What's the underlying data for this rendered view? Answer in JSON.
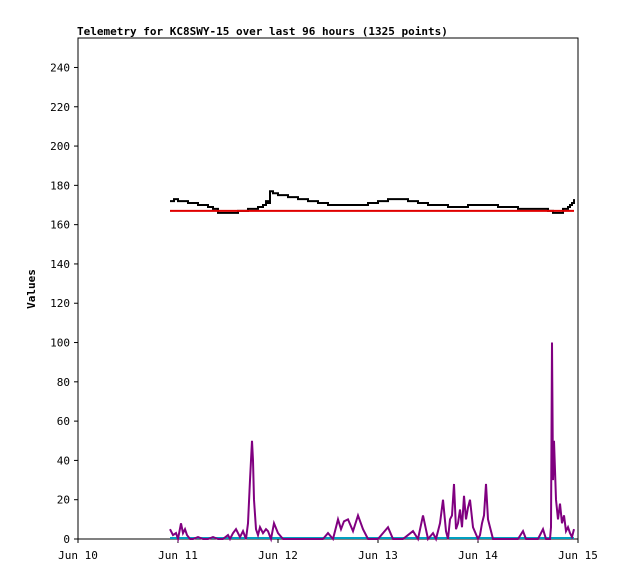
{
  "chart_data": {
    "type": "line",
    "title": "Telemetry for KC8SWY-15 over last 96 hours (1325 points)",
    "xlabel": "",
    "ylabel": "Values",
    "ylim": [
      0,
      255
    ],
    "yticks": [
      0,
      20,
      40,
      60,
      80,
      100,
      120,
      140,
      160,
      180,
      200,
      220,
      240
    ],
    "xticks": [
      {
        "label": "Jun 10",
        "x": 0
      },
      {
        "label": "Jun 11",
        "x": 1
      },
      {
        "label": "Jun 12",
        "x": 2
      },
      {
        "label": "Jun 13",
        "x": 3
      },
      {
        "label": "Jun 14",
        "x": 4
      },
      {
        "label": "Jun 15",
        "x": 5
      }
    ],
    "xlim": [
      0,
      5
    ],
    "grid": false,
    "series": [
      {
        "color": "#000000",
        "style": "step",
        "x": [
          0.92,
          0.96,
          1.0,
          1.1,
          1.2,
          1.3,
          1.35,
          1.4,
          1.55,
          1.6,
          1.7,
          1.8,
          1.85,
          1.88,
          1.9,
          1.92,
          1.95,
          2.0,
          2.1,
          2.2,
          2.3,
          2.4,
          2.5,
          2.6,
          2.7,
          2.8,
          2.9,
          3.0,
          3.1,
          3.2,
          3.3,
          3.4,
          3.5,
          3.6,
          3.7,
          3.8,
          3.9,
          4.0,
          4.1,
          4.2,
          4.3,
          4.4,
          4.5,
          4.6,
          4.65,
          4.7,
          4.75,
          4.8,
          4.85,
          4.9,
          4.92,
          4.94,
          4.96
        ],
        "y": [
          172,
          173,
          172,
          171,
          170,
          169,
          168,
          166,
          166,
          167,
          168,
          169,
          170,
          172,
          171,
          177,
          176,
          175,
          174,
          173,
          172,
          171,
          170,
          170,
          170,
          170,
          171,
          172,
          173,
          173,
          172,
          171,
          170,
          170,
          169,
          169,
          170,
          170,
          170,
          169,
          169,
          168,
          168,
          168,
          168,
          167,
          166,
          166,
          168,
          169,
          170,
          171,
          173
        ]
      },
      {
        "color": "#e00000",
        "style": "line",
        "x": [
          0.92,
          4.96
        ],
        "y": [
          167,
          167
        ]
      },
      {
        "color": "#00a0c0",
        "style": "line",
        "x": [
          0.92,
          4.96
        ],
        "y": [
          0.5,
          0.5
        ]
      },
      {
        "color": "#800080",
        "style": "line",
        "x": [
          0.92,
          0.95,
          0.98,
          1.0,
          1.03,
          1.05,
          1.07,
          1.09,
          1.12,
          1.15,
          1.2,
          1.25,
          1.3,
          1.35,
          1.4,
          1.45,
          1.5,
          1.52,
          1.55,
          1.58,
          1.62,
          1.65,
          1.68,
          1.7,
          1.72,
          1.74,
          1.75,
          1.76,
          1.78,
          1.8,
          1.82,
          1.85,
          1.88,
          1.9,
          1.93,
          1.96,
          2.0,
          2.05,
          2.1,
          2.15,
          2.2,
          2.3,
          2.4,
          2.45,
          2.5,
          2.55,
          2.58,
          2.6,
          2.63,
          2.66,
          2.7,
          2.75,
          2.8,
          2.85,
          2.9,
          2.95,
          3.0,
          3.05,
          3.1,
          3.15,
          3.2,
          3.25,
          3.3,
          3.35,
          3.4,
          3.45,
          3.5,
          3.55,
          3.58,
          3.62,
          3.65,
          3.68,
          3.7,
          3.72,
          3.74,
          3.76,
          3.78,
          3.8,
          3.82,
          3.84,
          3.86,
          3.88,
          3.9,
          3.92,
          3.95,
          4.0,
          4.02,
          4.04,
          4.06,
          4.08,
          4.1,
          4.15,
          4.2,
          4.3,
          4.4,
          4.45,
          4.48,
          4.5,
          4.55,
          4.6,
          4.65,
          4.68,
          4.7,
          4.72,
          4.73,
          4.74,
          4.75,
          4.76,
          4.78,
          4.8,
          4.82,
          4.84,
          4.86,
          4.88,
          4.9,
          4.92,
          4.94,
          4.96
        ],
        "y": [
          5,
          2,
          3,
          0,
          8,
          3,
          5,
          2,
          0,
          0,
          1,
          0,
          0,
          1,
          0,
          0,
          2,
          0,
          3,
          5,
          1,
          4,
          0,
          8,
          30,
          50,
          40,
          20,
          5,
          2,
          6,
          3,
          5,
          4,
          0,
          8,
          3,
          0,
          0,
          0,
          0,
          0,
          0,
          0,
          3,
          0,
          6,
          10,
          5,
          9,
          10,
          4,
          12,
          5,
          0,
          0,
          0,
          3,
          6,
          0,
          0,
          0,
          2,
          4,
          0,
          12,
          0,
          3,
          0,
          8,
          20,
          4,
          0,
          10,
          12,
          28,
          5,
          8,
          15,
          6,
          22,
          10,
          16,
          20,
          6,
          0,
          2,
          8,
          12,
          28,
          10,
          0,
          0,
          0,
          0,
          4,
          0,
          0,
          0,
          0,
          5,
          0,
          0,
          0,
          6,
          100,
          30,
          50,
          20,
          10,
          18,
          8,
          12,
          4,
          6,
          3,
          1,
          5
        ]
      }
    ]
  }
}
